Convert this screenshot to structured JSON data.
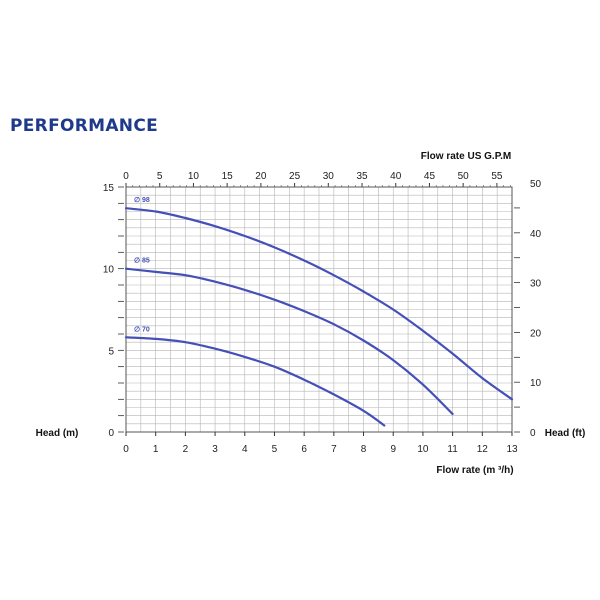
{
  "heading": "PERFORMANCE",
  "colors": {
    "curve": "#4450b8",
    "grid": "#b5b5b5",
    "heading": "#1f3a8a"
  },
  "chart_data": {
    "type": "line",
    "title": "PERFORMANCE",
    "grid": true,
    "bottom_axis": {
      "label": "Flow rate  (m ³/h)",
      "range": [
        0,
        13
      ],
      "ticks": [
        "0",
        "1",
        "2",
        "3",
        "4",
        "5",
        "6",
        "7",
        "8",
        "9",
        "10",
        "11",
        "12",
        "13"
      ]
    },
    "top_axis": {
      "label": "Flow rate US  G.P.M",
      "range": [
        0,
        57.24
      ],
      "ticks": [
        "0",
        "5",
        "10",
        "15",
        "20",
        "25",
        "30",
        "35",
        "40",
        "45",
        "50",
        "55"
      ]
    },
    "left_axis": {
      "label": "Head (m)",
      "range": [
        0,
        15
      ],
      "ticks": [
        "0",
        "5",
        "10",
        "15"
      ]
    },
    "right_axis": {
      "label": "Head (ft)",
      "range": [
        0,
        49.2
      ],
      "ticks": [
        "0",
        "10",
        "20",
        "30",
        "40",
        "50"
      ]
    },
    "series": [
      {
        "name": "∅ 98",
        "x": [
          0,
          1,
          2,
          3,
          4,
          5,
          6,
          7,
          8,
          9,
          10,
          11,
          12,
          13
        ],
        "y": [
          13.7,
          13.5,
          13.1,
          12.6,
          12.0,
          11.3,
          10.5,
          9.6,
          8.6,
          7.5,
          6.2,
          4.8,
          3.3,
          2.0
        ]
      },
      {
        "name": "∅ 85",
        "x": [
          0,
          1,
          2,
          3,
          4,
          5,
          6,
          7,
          8,
          9,
          10,
          11
        ],
        "y": [
          10.0,
          9.8,
          9.6,
          9.2,
          8.7,
          8.1,
          7.4,
          6.6,
          5.6,
          4.4,
          2.9,
          1.1
        ]
      },
      {
        "name": "∅ 70",
        "x": [
          0,
          1,
          2,
          3,
          4,
          5,
          6,
          7,
          8,
          8.7
        ],
        "y": [
          5.8,
          5.7,
          5.5,
          5.1,
          4.6,
          4.0,
          3.2,
          2.3,
          1.3,
          0.4
        ]
      }
    ]
  }
}
